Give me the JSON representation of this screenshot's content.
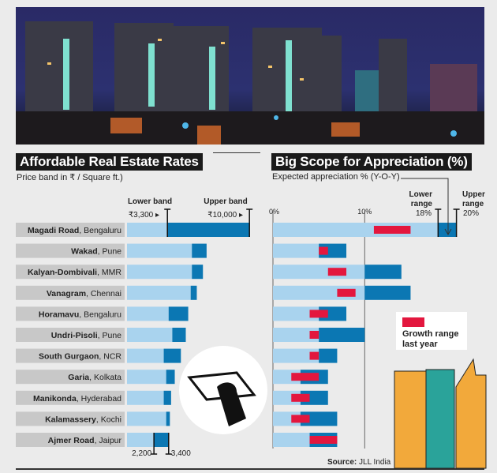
{
  "colors": {
    "light_bar": "#a9d3ee",
    "dark_bar": "#0b77b3",
    "growth": "#e3173e",
    "label_bg": "#c8c8c8"
  },
  "left": {
    "title": "Affordable Real Estate Rates",
    "subtitle": "Price band in ₹ / Square ft.)",
    "lower_band_label": "Lower band",
    "upper_band_label": "Upper band",
    "lower_band_value": "₹3,300",
    "upper_band_value": "₹10,000",
    "bottom_low": "2,200",
    "bottom_high": "3,400"
  },
  "right": {
    "title": "Big Scope for Appreciation (%)",
    "subtitle": "Expected appreciation % (Y-O-Y)",
    "tick_0": "0%",
    "tick_10": "10%",
    "lower_range_label_1": "Lower",
    "lower_range_label_2": "range",
    "lower_range_value": "18%",
    "upper_range_label_1": "Upper",
    "upper_range_label_2": "range",
    "upper_range_value": "20%",
    "legend_1": "Growth range",
    "legend_2": "last year"
  },
  "source_label": "Source:",
  "source_value": "JLL India",
  "chart_data": [
    {
      "type": "bar",
      "subtype": "range",
      "title": "Affordable Real Estate Rates",
      "ylabel": "Price band in ₹ / Square ft.)",
      "xlim": [
        0,
        10000
      ],
      "categories": [
        {
          "locality": "Magadi Road",
          "city": ", Bengaluru"
        },
        {
          "locality": "Wakad",
          "city": ", Pune"
        },
        {
          "locality": "Kalyan-Dombivali",
          "city": ", MMR"
        },
        {
          "locality": "Vanagram",
          "city": ", Chennai"
        },
        {
          "locality": "Horamavu",
          "city": ", Bengaluru"
        },
        {
          "locality": "Undri-Pisoli",
          "city": ", Pune"
        },
        {
          "locality": "South Gurgaon",
          "city": ", NCR"
        },
        {
          "locality": "Garia",
          "city": ", Kolkata"
        },
        {
          "locality": "Manikonda",
          "city": ", Hyderabad"
        },
        {
          "locality": "Kalamassery",
          "city": ", Kochi"
        },
        {
          "locality": "Ajmer Road",
          "city": ", Jaipur"
        }
      ],
      "series": [
        {
          "name": "Lower band",
          "values": [
            3300,
            5300,
            5300,
            5200,
            3400,
            3700,
            3000,
            3200,
            3000,
            3200,
            2200
          ]
        },
        {
          "name": "Upper band",
          "values": [
            10000,
            6500,
            6200,
            5700,
            5000,
            4800,
            4400,
            3900,
            3600,
            3500,
            3400
          ]
        }
      ]
    },
    {
      "type": "bar",
      "subtype": "range",
      "title": "Big Scope for Appreciation (%)",
      "ylabel": "Expected appreciation % (Y-O-Y)",
      "xlim": [
        0,
        20
      ],
      "grid": "vertical lines at 0% and 10%",
      "series": [
        {
          "name": "Expected appreciation lower",
          "values": [
            18,
            5,
            10,
            10,
            5,
            5,
            5,
            3,
            3,
            3,
            4
          ]
        },
        {
          "name": "Expected appreciation upper",
          "values": [
            20,
            8,
            14,
            15,
            8,
            10,
            7,
            6,
            6,
            7,
            7
          ]
        },
        {
          "name": "Growth range last year (low)",
          "values": [
            11,
            5,
            6,
            7,
            4,
            4,
            4,
            2,
            2,
            2,
            4
          ]
        },
        {
          "name": "Growth range last year (high)",
          "values": [
            15,
            6,
            8,
            9,
            6,
            5,
            5,
            5,
            4,
            4,
            7
          ]
        }
      ]
    }
  ]
}
